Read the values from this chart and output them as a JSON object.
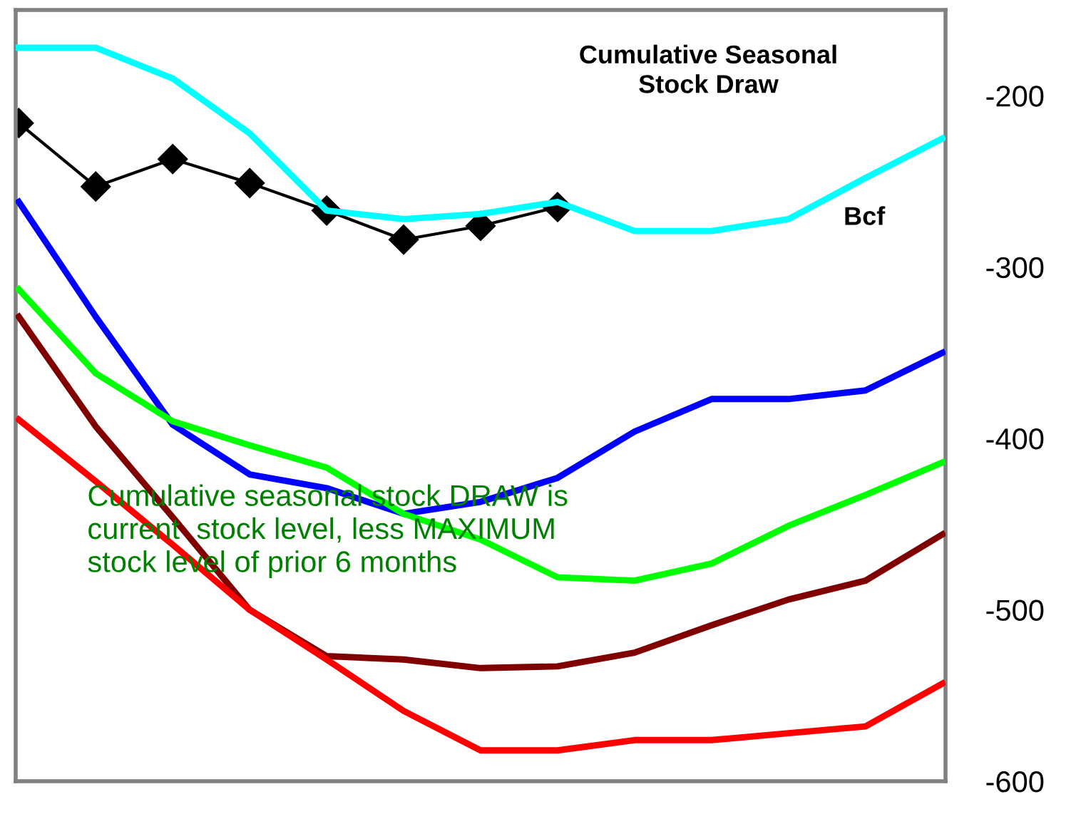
{
  "chart_data": {
    "type": "line",
    "title": "Cumulative Seasonal\nStock Draw",
    "ylabel": "Bcf",
    "annotations": [
      "Cumulative seasonal stock DRAW is\ncurrent  stock level, less MAXIMUM\nstock level of prior 6 months"
    ],
    "categories": [
      null,
      null,
      null,
      null,
      null,
      null,
      null,
      null,
      null,
      null,
      null,
      null,
      null
    ],
    "series": [
      {
        "color": "#00ffff",
        "values": [
          -172,
          -172,
          -190,
          -222,
          -267,
          -272,
          -269,
          -262,
          -279,
          -279,
          -272,
          -248,
          -225
        ]
      },
      {
        "color": "#0000ff",
        "values": [
          -262,
          -329,
          -392,
          -421,
          -429,
          -444,
          -437,
          -423,
          -396,
          -377,
          -377,
          -372,
          -350
        ]
      },
      {
        "color": "#00ff00",
        "values": [
          -313,
          -362,
          -390,
          -404,
          -417,
          -444,
          -459,
          -481,
          -483,
          -473,
          -451,
          -433,
          -414
        ]
      },
      {
        "color": "#800000",
        "values": [
          -329,
          -393,
          -446,
          -500,
          -527,
          -529,
          -534,
          -533,
          -525,
          -509,
          -494,
          -483,
          -456
        ]
      },
      {
        "color": "#ff0000",
        "values": [
          -389,
          -425,
          -462,
          -500,
          -529,
          -559,
          -582,
          -582,
          -576,
          -576,
          -572,
          -568,
          -543
        ]
      },
      {
        "color": "#000000",
        "marker": "diamond",
        "values": [
          -216,
          -253,
          -237,
          -251,
          -267,
          -284,
          -276,
          -265,
          null,
          null,
          null,
          null,
          null
        ]
      }
    ],
    "ylim": [
      -600,
      -150
    ],
    "yticks": [
      -600,
      -500,
      -400,
      -300,
      -200
    ],
    "grid": false,
    "legend": false
  }
}
